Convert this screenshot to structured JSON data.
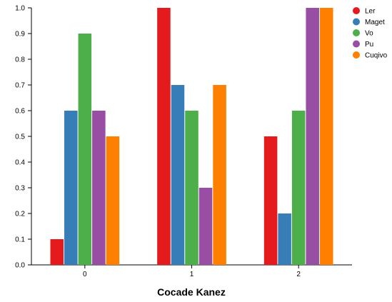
{
  "chart_data": {
    "type": "bar",
    "title": "",
    "xlabel": "Cocade Kanez",
    "ylabel": "",
    "categories": [
      "0",
      "1",
      "2"
    ],
    "ylim": [
      0,
      1.0
    ],
    "y_ticks": [
      "0.0",
      "0.1",
      "0.2",
      "0.3",
      "0.4",
      "0.5",
      "0.6",
      "0.7",
      "0.8",
      "0.9",
      "1.0"
    ],
    "grid": false,
    "legend_position": "top-right",
    "series": [
      {
        "name": "Ler",
        "color": "#e41a1c",
        "values": [
          0.1,
          1.0,
          0.5
        ]
      },
      {
        "name": "Maget",
        "color": "#377eb8",
        "values": [
          0.6,
          0.7,
          0.2
        ]
      },
      {
        "name": "Vo",
        "color": "#4daf4a",
        "values": [
          0.9,
          0.6,
          0.6
        ]
      },
      {
        "name": "Pu",
        "color": "#984ea3",
        "values": [
          0.6,
          0.3,
          1.0
        ]
      },
      {
        "name": "Cuqivo",
        "color": "#ff7f00",
        "values": [
          0.5,
          0.7,
          1.0
        ]
      }
    ]
  }
}
